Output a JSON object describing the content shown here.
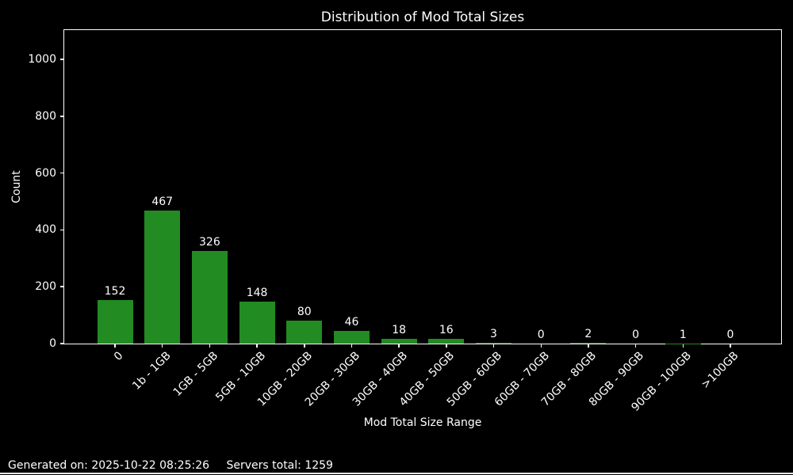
{
  "chart_data": {
    "type": "bar",
    "title": "Distribution of Mod Total Sizes",
    "xlabel": "Mod Total Size Range",
    "ylabel": "Count",
    "categories": [
      "0",
      "1b - 1GB",
      "1GB - 5GB",
      "5GB - 10GB",
      "10GB - 20GB",
      "20GB - 30GB",
      "30GB - 40GB",
      "40GB - 50GB",
      "50GB - 60GB",
      "60GB - 70GB",
      "70GB - 80GB",
      "80GB - 90GB",
      "90GB - 100GB",
      ">100GB"
    ],
    "values": [
      152,
      467,
      326,
      148,
      80,
      46,
      18,
      16,
      3,
      0,
      2,
      0,
      1,
      0
    ],
    "yticks": [
      0,
      200,
      400,
      600,
      800,
      1000
    ],
    "ylim": [
      0,
      1103
    ],
    "grid": false,
    "legend": null,
    "bar_color": "#228B22",
    "background_color": "#000000",
    "text_color": "#ffffff",
    "spine_color": "#ffffff"
  },
  "footer": {
    "generated": "Generated on: 2025-10-22 08:25:26",
    "servers_total": "Servers total: 1259"
  }
}
